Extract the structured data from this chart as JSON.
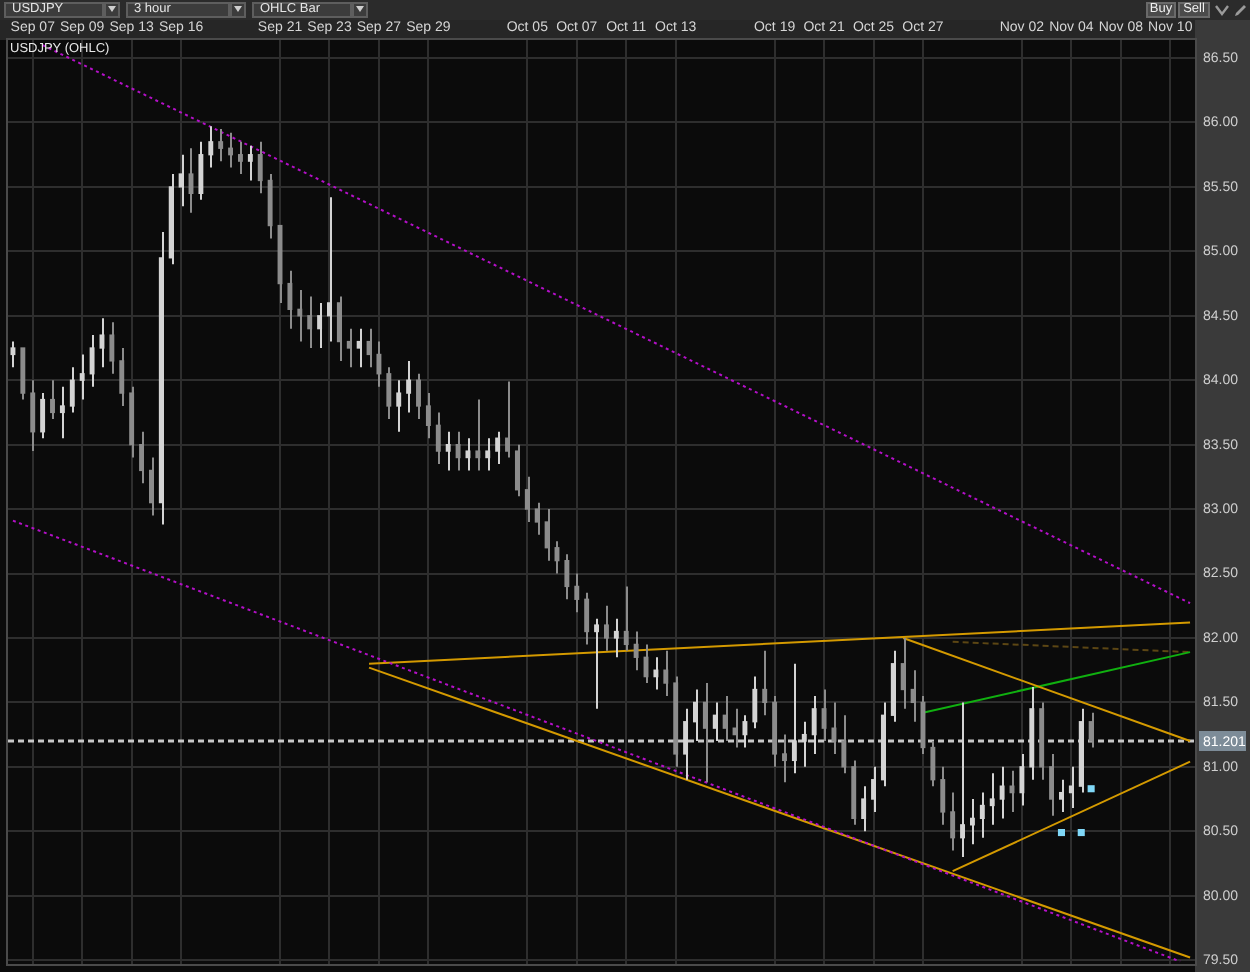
{
  "chart_data": {
    "type": "candlestick",
    "title": "USDJPY (OHLC)",
    "annotations": [
      "USDJPY",
      "3 hour",
      "OHLC Bar",
      "Buy",
      "Sell"
    ],
    "categories": [
      null,
      null,
      "Sep 07",
      null,
      null,
      null,
      null,
      "Sep 09",
      null,
      null,
      null,
      null,
      "Sep 13",
      null,
      null,
      null,
      null,
      "Sep 16",
      null,
      null,
      null,
      null,
      null,
      null,
      null,
      null,
      null,
      "Sep 21",
      null,
      null,
      null,
      null,
      "Sep 23",
      null,
      null,
      null,
      null,
      "Sep 27",
      null,
      null,
      null,
      null,
      "Sep 29",
      null,
      null,
      null,
      null,
      null,
      null,
      null,
      null,
      null,
      "Oct 05",
      null,
      null,
      null,
      null,
      "Oct 07",
      null,
      null,
      null,
      null,
      "Oct 11",
      null,
      null,
      null,
      null,
      "Oct 13",
      null,
      null,
      null,
      null,
      null,
      null,
      null,
      null,
      null,
      "Oct 19",
      null,
      null,
      null,
      null,
      "Oct 21",
      null,
      null,
      null,
      null,
      "Oct 25",
      null,
      null,
      null,
      null,
      "Oct 27",
      null,
      null,
      null,
      null,
      null,
      null,
      null,
      null,
      null,
      "Nov 02",
      null,
      null,
      null,
      null,
      "Nov 04",
      null,
      null,
      null,
      null,
      "Nov 08",
      null,
      null,
      null,
      null,
      "Nov 10",
      null,
      null
    ],
    "ohlc": [
      [
        84.2,
        84.3,
        84.1,
        84.25
      ],
      [
        84.25,
        84.25,
        83.85,
        83.9
      ],
      [
        83.9,
        84.0,
        83.45,
        83.6
      ],
      [
        83.6,
        83.9,
        83.55,
        83.85
      ],
      [
        83.85,
        84.0,
        83.7,
        83.75
      ],
      [
        83.75,
        83.95,
        83.55,
        83.8
      ],
      [
        83.8,
        84.1,
        83.75,
        84.0
      ],
      [
        84.0,
        84.2,
        83.85,
        84.05
      ],
      [
        84.05,
        84.35,
        83.95,
        84.25
      ],
      [
        84.25,
        84.48,
        84.1,
        84.35
      ],
      [
        84.35,
        84.45,
        84.05,
        84.15
      ],
      [
        84.15,
        84.25,
        83.8,
        83.9
      ],
      [
        83.9,
        83.95,
        83.4,
        83.5
      ],
      [
        83.5,
        83.6,
        83.2,
        83.3
      ],
      [
        83.3,
        83.4,
        82.95,
        83.05
      ],
      [
        83.05,
        85.15,
        82.88,
        84.95
      ],
      [
        84.95,
        85.6,
        84.9,
        85.5
      ],
      [
        85.5,
        85.75,
        85.35,
        85.6
      ],
      [
        85.6,
        85.8,
        85.3,
        85.45
      ],
      [
        85.45,
        85.85,
        85.4,
        85.75
      ],
      [
        85.75,
        85.97,
        85.65,
        85.85
      ],
      [
        85.85,
        85.95,
        85.7,
        85.8
      ],
      [
        85.8,
        85.92,
        85.65,
        85.75
      ],
      [
        85.75,
        85.85,
        85.6,
        85.7
      ],
      [
        85.7,
        85.82,
        85.55,
        85.75
      ],
      [
        85.75,
        85.85,
        85.45,
        85.55
      ],
      [
        85.55,
        85.6,
        85.1,
        85.2
      ],
      [
        85.2,
        85.2,
        84.6,
        84.75
      ],
      [
        84.75,
        84.85,
        84.4,
        84.55
      ],
      [
        84.55,
        84.7,
        84.3,
        84.5
      ],
      [
        84.5,
        84.65,
        84.25,
        84.4
      ],
      [
        84.4,
        84.6,
        84.25,
        84.5
      ],
      [
        84.5,
        85.42,
        84.3,
        84.6
      ],
      [
        84.6,
        84.65,
        84.15,
        84.3
      ],
      [
        84.3,
        84.4,
        84.1,
        84.25
      ],
      [
        84.25,
        84.4,
        84.1,
        84.3
      ],
      [
        84.3,
        84.4,
        84.1,
        84.2
      ],
      [
        84.2,
        84.3,
        83.95,
        84.05
      ],
      [
        84.05,
        84.1,
        83.7,
        83.8
      ],
      [
        83.8,
        84.0,
        83.6,
        83.9
      ],
      [
        83.9,
        84.15,
        83.75,
        84.0
      ],
      [
        84.0,
        84.05,
        83.7,
        83.8
      ],
      [
        83.8,
        83.9,
        83.55,
        83.65
      ],
      [
        83.65,
        83.75,
        83.35,
        83.45
      ],
      [
        83.45,
        83.6,
        83.3,
        83.5
      ],
      [
        83.5,
        83.6,
        83.3,
        83.4
      ],
      [
        83.4,
        83.55,
        83.3,
        83.45
      ],
      [
        83.45,
        83.85,
        83.3,
        83.4
      ],
      [
        83.4,
        83.55,
        83.3,
        83.45
      ],
      [
        83.45,
        83.6,
        83.35,
        83.55
      ],
      [
        83.55,
        83.99,
        83.4,
        83.45
      ],
      [
        83.45,
        83.5,
        83.1,
        83.15
      ],
      [
        83.15,
        83.25,
        82.9,
        83.0
      ],
      [
        83.0,
        83.05,
        82.8,
        82.9
      ],
      [
        82.9,
        83.0,
        82.6,
        82.7
      ],
      [
        82.7,
        82.75,
        82.5,
        82.6
      ],
      [
        82.6,
        82.65,
        82.3,
        82.4
      ],
      [
        82.4,
        82.5,
        82.2,
        82.3
      ],
      [
        82.3,
        82.35,
        81.95,
        82.05
      ],
      [
        82.05,
        82.15,
        81.45,
        82.1
      ],
      [
        82.1,
        82.25,
        81.9,
        82.0
      ],
      [
        82.0,
        82.15,
        81.85,
        82.05
      ],
      [
        82.05,
        82.4,
        81.9,
        81.95
      ],
      [
        81.95,
        82.05,
        81.75,
        81.85
      ],
      [
        81.85,
        81.95,
        81.65,
        81.7
      ],
      [
        81.7,
        81.85,
        81.6,
        81.75
      ],
      [
        81.75,
        81.9,
        81.55,
        81.65
      ],
      [
        81.65,
        81.7,
        81.0,
        81.1
      ],
      [
        81.1,
        81.45,
        80.9,
        81.35
      ],
      [
        81.35,
        81.6,
        81.2,
        81.5
      ],
      [
        81.5,
        81.65,
        80.88,
        81.3
      ],
      [
        81.3,
        81.5,
        81.2,
        81.4
      ],
      [
        81.4,
        81.55,
        81.2,
        81.3
      ],
      [
        81.3,
        81.45,
        81.15,
        81.25
      ],
      [
        81.25,
        81.4,
        81.15,
        81.35
      ],
      [
        81.35,
        81.7,
        81.3,
        81.6
      ],
      [
        81.6,
        81.9,
        81.4,
        81.5
      ],
      [
        81.5,
        81.55,
        81.0,
        81.1
      ],
      [
        81.1,
        81.25,
        80.88,
        81.05
      ],
      [
        81.05,
        81.8,
        80.95,
        81.2
      ],
      [
        81.2,
        81.35,
        81.0,
        81.25
      ],
      [
        81.25,
        81.55,
        81.1,
        81.45
      ],
      [
        81.45,
        81.6,
        81.2,
        81.3
      ],
      [
        81.3,
        81.5,
        81.1,
        81.2
      ],
      [
        81.2,
        81.4,
        80.95,
        81.0
      ],
      [
        81.0,
        81.05,
        80.55,
        80.6
      ],
      [
        80.6,
        80.85,
        80.5,
        80.75
      ],
      [
        80.75,
        81.0,
        80.65,
        80.9
      ],
      [
        80.9,
        81.5,
        80.85,
        81.4
      ],
      [
        81.4,
        81.9,
        81.35,
        81.8
      ],
      [
        81.8,
        82.0,
        81.45,
        81.6
      ],
      [
        81.6,
        81.75,
        81.35,
        81.5
      ],
      [
        81.5,
        81.55,
        81.1,
        81.15
      ],
      [
        81.15,
        81.2,
        80.85,
        80.9
      ],
      [
        80.9,
        81.0,
        80.55,
        80.65
      ],
      [
        80.65,
        80.8,
        80.35,
        80.45
      ],
      [
        80.45,
        81.5,
        80.3,
        80.55
      ],
      [
        80.55,
        80.75,
        80.4,
        80.6
      ],
      [
        80.6,
        80.8,
        80.45,
        80.7
      ],
      [
        80.7,
        80.95,
        80.55,
        80.75
      ],
      [
        80.75,
        81.0,
        80.6,
        80.85
      ],
      [
        80.85,
        80.97,
        80.65,
        80.8
      ],
      [
        80.8,
        81.1,
        80.7,
        81.0
      ],
      [
        81.0,
        81.62,
        80.9,
        81.45
      ],
      [
        81.45,
        81.5,
        80.9,
        81.0
      ],
      [
        81.0,
        81.1,
        80.62,
        80.75
      ],
      [
        80.75,
        80.9,
        80.65,
        80.8
      ],
      [
        80.8,
        81.0,
        80.68,
        80.85
      ],
      [
        80.85,
        81.45,
        80.8,
        81.35
      ],
      [
        81.35,
        81.42,
        81.15,
        81.2
      ],
      null,
      null,
      null,
      null,
      null,
      null,
      null,
      null,
      null,
      null
    ],
    "colors": [
      "#d4d4d4",
      "#8c8c8c",
      "#8c8c8c",
      "#d4d4d4",
      "#8c8c8c",
      "#d4d4d4",
      "#d4d4d4",
      "#d4d4d4",
      "#d4d4d4",
      "#d4d4d4",
      "#8c8c8c",
      "#8c8c8c",
      "#8c8c8c",
      "#8c8c8c",
      "#8c8c8c",
      "#d4d4d4",
      "#d4d4d4",
      "#d4d4d4",
      "#8c8c8c",
      "#d4d4d4",
      "#d4d4d4",
      "#8c8c8c",
      "#8c8c8c",
      "#8c8c8c",
      "#d4d4d4",
      "#8c8c8c",
      "#8c8c8c",
      "#8c8c8c",
      "#8c8c8c",
      "#8c8c8c",
      "#8c8c8c",
      "#d4d4d4",
      "#d4d4d4",
      "#8c8c8c",
      "#8c8c8c",
      "#d4d4d4",
      "#8c8c8c",
      "#8c8c8c",
      "#8c8c8c",
      "#d4d4d4",
      "#d4d4d4",
      "#8c8c8c",
      "#8c8c8c",
      "#8c8c8c",
      "#d4d4d4",
      "#8c8c8c",
      "#d4d4d4",
      "#8c8c8c",
      "#d4d4d4",
      "#d4d4d4",
      "#8c8c8c",
      "#8c8c8c",
      "#8c8c8c",
      "#8c8c8c",
      "#8c8c8c",
      "#8c8c8c",
      "#8c8c8c",
      "#8c8c8c",
      "#8c8c8c",
      "#d4d4d4",
      "#8c8c8c",
      "#d4d4d4",
      "#8c8c8c",
      "#8c8c8c",
      "#8c8c8c",
      "#d4d4d4",
      "#8c8c8c",
      "#8c8c8c",
      "#d4d4d4",
      "#d4d4d4",
      "#8c8c8c",
      "#d4d4d4",
      "#8c8c8c",
      "#8c8c8c",
      "#d4d4d4",
      "#d4d4d4",
      "#8c8c8c",
      "#8c8c8c",
      "#8c8c8c",
      "#d4d4d4",
      "#d4d4d4",
      "#d4d4d4",
      "#8c8c8c",
      "#8c8c8c",
      "#8c8c8c",
      "#8c8c8c",
      "#d4d4d4",
      "#d4d4d4",
      "#d4d4d4",
      "#d4d4d4",
      "#8c8c8c",
      "#8c8c8c",
      "#8c8c8c",
      "#8c8c8c",
      "#8c8c8c",
      "#8c8c8c",
      "#d4d4d4",
      "#d4d4d4",
      "#d4d4d4",
      "#d4d4d4",
      "#d4d4d4",
      "#8c8c8c",
      "#d4d4d4",
      "#d4d4d4",
      "#8c8c8c",
      "#8c8c8c",
      "#d4d4d4",
      "#d4d4d4",
      "#d4d4d4",
      "#8c8c8c",
      null,
      null,
      null,
      null,
      null,
      null,
      null,
      null,
      null,
      null
    ],
    "series": [
      {
        "type": "line",
        "color": "#b410c8",
        "line_style": "dotted",
        "values": [
          null,
          null,
          null,
          86.6,
          null,
          null,
          null,
          null,
          null,
          null,
          null,
          null,
          null,
          null,
          null,
          null,
          null,
          null,
          null,
          null,
          null,
          null,
          null,
          null,
          null,
          null,
          null,
          null,
          null,
          null,
          null,
          null,
          null,
          null,
          null,
          null,
          null,
          null,
          null,
          null,
          null,
          null,
          null,
          null,
          null,
          null,
          null,
          null,
          null,
          null,
          null,
          null,
          null,
          null,
          null,
          null,
          null,
          null,
          null,
          null,
          null,
          null,
          null,
          null,
          null,
          null,
          null,
          null,
          null,
          null,
          null,
          null,
          null,
          null,
          null,
          null,
          null,
          null,
          null,
          null,
          null,
          null,
          null,
          null,
          null,
          null,
          null,
          null,
          null,
          null,
          null,
          null,
          null,
          null,
          null,
          null,
          null,
          null,
          null,
          null,
          null,
          null,
          null,
          null,
          null,
          null,
          null,
          null,
          null,
          null,
          null,
          null,
          null,
          null,
          null,
          null,
          null,
          null,
          null,
          82.27
        ]
      },
      {
        "type": "line",
        "color": "#b410c8",
        "line_style": "dotted",
        "values": [
          82.91,
          null,
          null,
          null,
          null,
          null,
          null,
          null,
          null,
          null,
          null,
          null,
          null,
          null,
          null,
          null,
          null,
          null,
          null,
          null,
          null,
          null,
          null,
          null,
          null,
          null,
          null,
          null,
          null,
          null,
          null,
          null,
          null,
          null,
          null,
          null,
          null,
          null,
          null,
          null,
          null,
          null,
          null,
          null,
          null,
          null,
          null,
          null,
          null,
          null,
          null,
          null,
          null,
          null,
          null,
          null,
          null,
          null,
          null,
          null,
          null,
          null,
          null,
          null,
          null,
          null,
          null,
          null,
          null,
          null,
          null,
          null,
          null,
          null,
          null,
          null,
          null,
          null,
          null,
          null,
          null,
          null,
          null,
          null,
          null,
          null,
          null,
          null,
          null,
          null,
          null,
          null,
          null,
          null,
          null,
          null,
          null,
          null,
          null,
          null,
          null,
          null,
          null,
          null,
          null,
          null,
          null,
          null,
          null,
          null,
          null,
          null,
          null,
          null,
          null,
          null,
          null,
          null,
          79.49,
          null
        ]
      },
      {
        "type": "line",
        "color": "#d49a00",
        "line_style": "solid",
        "values": [
          null,
          null,
          null,
          null,
          null,
          null,
          null,
          null,
          null,
          null,
          null,
          null,
          null,
          null,
          null,
          null,
          null,
          null,
          null,
          null,
          null,
          null,
          null,
          null,
          null,
          null,
          null,
          null,
          null,
          null,
          null,
          null,
          null,
          null,
          null,
          null,
          81.8,
          null,
          null,
          null,
          null,
          null,
          null,
          null,
          null,
          null,
          null,
          null,
          null,
          null,
          null,
          null,
          null,
          null,
          null,
          null,
          null,
          null,
          null,
          null,
          null,
          null,
          null,
          null,
          null,
          null,
          null,
          null,
          null,
          null,
          null,
          null,
          null,
          null,
          null,
          null,
          null,
          null,
          null,
          null,
          null,
          null,
          null,
          null,
          null,
          null,
          null,
          null,
          null,
          null,
          null,
          null,
          null,
          null,
          null,
          null,
          null,
          null,
          null,
          null,
          null,
          null,
          null,
          null,
          null,
          null,
          null,
          null,
          null,
          null,
          null,
          null,
          null,
          null,
          null,
          null,
          null,
          null,
          null,
          82.12
        ]
      },
      {
        "type": "line",
        "color": "#d49a00",
        "line_style": "solid",
        "values": [
          null,
          null,
          null,
          null,
          null,
          null,
          null,
          null,
          null,
          null,
          null,
          null,
          null,
          null,
          null,
          null,
          null,
          null,
          null,
          null,
          null,
          null,
          null,
          null,
          null,
          null,
          null,
          null,
          null,
          null,
          null,
          null,
          null,
          null,
          null,
          null,
          81.77,
          null,
          null,
          null,
          null,
          null,
          null,
          null,
          null,
          null,
          null,
          null,
          null,
          null,
          null,
          null,
          null,
          null,
          null,
          null,
          null,
          null,
          null,
          null,
          null,
          null,
          null,
          null,
          null,
          null,
          null,
          null,
          null,
          null,
          null,
          null,
          null,
          null,
          null,
          null,
          null,
          null,
          null,
          null,
          null,
          null,
          null,
          null,
          null,
          null,
          null,
          null,
          null,
          null,
          null,
          null,
          null,
          null,
          null,
          null,
          null,
          null,
          null,
          null,
          null,
          null,
          null,
          null,
          null,
          null,
          null,
          null,
          null,
          null,
          null,
          null,
          null,
          null,
          null,
          null,
          null,
          null,
          null,
          79.52
        ]
      },
      {
        "type": "line",
        "color": "#d49a00",
        "line_style": "solid",
        "values": [
          null,
          null,
          null,
          null,
          null,
          null,
          null,
          null,
          null,
          null,
          null,
          null,
          null,
          null,
          null,
          null,
          null,
          null,
          null,
          null,
          null,
          null,
          null,
          null,
          null,
          null,
          null,
          null,
          null,
          null,
          null,
          null,
          null,
          null,
          null,
          null,
          null,
          null,
          null,
          null,
          null,
          null,
          null,
          null,
          null,
          null,
          null,
          null,
          null,
          null,
          null,
          null,
          null,
          null,
          null,
          null,
          null,
          null,
          null,
          null,
          null,
          null,
          null,
          null,
          null,
          null,
          null,
          null,
          null,
          null,
          null,
          null,
          null,
          null,
          null,
          null,
          null,
          null,
          null,
          null,
          null,
          null,
          null,
          null,
          null,
          null,
          null,
          null,
          null,
          null,
          82.0,
          null,
          null,
          null,
          null,
          null,
          null,
          null,
          null,
          null,
          null,
          null,
          null,
          null,
          null,
          null,
          null,
          null,
          null,
          null,
          null,
          null,
          null,
          null,
          null,
          null,
          null,
          null,
          null,
          81.2
        ]
      },
      {
        "type": "line",
        "color": "#d49a00",
        "line_style": "solid",
        "values": [
          null,
          null,
          null,
          null,
          null,
          null,
          null,
          null,
          null,
          null,
          null,
          null,
          null,
          null,
          null,
          null,
          null,
          null,
          null,
          null,
          null,
          null,
          null,
          null,
          null,
          null,
          null,
          null,
          null,
          null,
          null,
          null,
          null,
          null,
          null,
          null,
          null,
          null,
          null,
          null,
          null,
          null,
          null,
          null,
          null,
          null,
          null,
          null,
          null,
          null,
          null,
          null,
          null,
          null,
          null,
          null,
          null,
          null,
          null,
          null,
          null,
          null,
          null,
          null,
          null,
          null,
          null,
          null,
          null,
          null,
          null,
          null,
          null,
          null,
          null,
          null,
          null,
          null,
          null,
          null,
          null,
          null,
          null,
          null,
          null,
          null,
          null,
          null,
          null,
          null,
          null,
          null,
          null,
          null,
          null,
          80.19,
          null,
          null,
          null,
          null,
          null,
          null,
          null,
          null,
          null,
          null,
          null,
          null,
          null,
          null,
          null,
          null,
          null,
          null,
          null,
          null,
          null,
          null,
          null,
          81.04
        ]
      },
      {
        "type": "line",
        "color": "#10b010",
        "line_style": "solid",
        "values": [
          null,
          null,
          null,
          null,
          null,
          null,
          null,
          null,
          null,
          null,
          null,
          null,
          null,
          null,
          null,
          null,
          null,
          null,
          null,
          null,
          null,
          null,
          null,
          null,
          null,
          null,
          null,
          null,
          null,
          null,
          null,
          null,
          null,
          null,
          null,
          null,
          null,
          null,
          null,
          null,
          null,
          null,
          null,
          null,
          null,
          null,
          null,
          null,
          null,
          null,
          null,
          null,
          null,
          null,
          null,
          null,
          null,
          null,
          null,
          null,
          null,
          null,
          null,
          null,
          null,
          null,
          null,
          null,
          null,
          null,
          null,
          null,
          null,
          null,
          null,
          null,
          null,
          null,
          null,
          null,
          null,
          null,
          null,
          null,
          null,
          null,
          null,
          null,
          null,
          null,
          null,
          null,
          81.42,
          null,
          null,
          null,
          null,
          null,
          null,
          null,
          null,
          null,
          null,
          null,
          null,
          null,
          null,
          null,
          null,
          null,
          null,
          null,
          null,
          null,
          null,
          null,
          null,
          null,
          null,
          81.89
        ]
      },
      {
        "type": "line",
        "color": "#5c4614",
        "line_style": "dashed",
        "values": [
          null,
          null,
          null,
          null,
          null,
          null,
          null,
          null,
          null,
          null,
          null,
          null,
          null,
          null,
          null,
          null,
          null,
          null,
          null,
          null,
          null,
          null,
          null,
          null,
          null,
          null,
          null,
          null,
          null,
          null,
          null,
          null,
          null,
          null,
          null,
          null,
          null,
          null,
          null,
          null,
          null,
          null,
          null,
          null,
          null,
          null,
          null,
          null,
          null,
          null,
          null,
          null,
          null,
          null,
          null,
          null,
          null,
          null,
          null,
          null,
          null,
          null,
          null,
          null,
          null,
          null,
          null,
          null,
          null,
          null,
          null,
          null,
          null,
          null,
          null,
          null,
          null,
          null,
          null,
          null,
          null,
          null,
          null,
          null,
          null,
          null,
          null,
          null,
          null,
          null,
          null,
          null,
          null,
          null,
          null,
          81.97,
          null,
          null,
          null,
          null,
          null,
          null,
          null,
          null,
          null,
          null,
          null,
          null,
          null,
          null,
          null,
          null,
          null,
          null,
          null,
          null,
          null,
          null,
          null,
          81.89
        ]
      },
      {
        "type": "scatter",
        "color": "#80d8f8",
        "marker": "square",
        "values": [
          null,
          null,
          null,
          null,
          null,
          null,
          null,
          null,
          null,
          null,
          null,
          null,
          null,
          null,
          null,
          null,
          null,
          null,
          null,
          null,
          null,
          null,
          null,
          null,
          null,
          null,
          null,
          null,
          null,
          null,
          null,
          null,
          null,
          null,
          null,
          null,
          null,
          null,
          null,
          null,
          null,
          null,
          null,
          null,
          null,
          null,
          null,
          null,
          null,
          null,
          null,
          null,
          null,
          null,
          null,
          null,
          null,
          null,
          null,
          null,
          null,
          null,
          null,
          null,
          null,
          null,
          null,
          null,
          null,
          null,
          null,
          null,
          null,
          null,
          null,
          null,
          null,
          null,
          null,
          null,
          null,
          null,
          null,
          null,
          null,
          null,
          null,
          null,
          null,
          null,
          null,
          null,
          null,
          null,
          null,
          null,
          null,
          null,
          null,
          null,
          null,
          null,
          null,
          null,
          null,
          null,
          80.49,
          null,
          80.49,
          80.83,
          null,
          null,
          null,
          null,
          null,
          null,
          null,
          null,
          null,
          null
        ]
      }
    ],
    "ylim": [
      79.47,
      86.64
    ],
    "yticks": [
      {
        "value": 79.5,
        "label": "79.50"
      },
      {
        "value": 80,
        "label": "80.00"
      },
      {
        "value": 80.5,
        "label": "80.50"
      },
      {
        "value": 81,
        "label": "81.00"
      },
      {
        "value": 81.5,
        "label": "81.50"
      },
      {
        "value": 82,
        "label": "82.00"
      },
      {
        "value": 82.5,
        "label": "82.50"
      },
      {
        "value": 83,
        "label": "83.00"
      },
      {
        "value": 83.5,
        "label": "83.50"
      },
      {
        "value": 84,
        "label": "84.00"
      },
      {
        "value": 84.5,
        "label": "84.50"
      },
      {
        "value": 85,
        "label": "85.00"
      },
      {
        "value": 85.5,
        "label": "85.50"
      },
      {
        "value": 86,
        "label": "86.00"
      },
      {
        "value": 86.5,
        "label": "86.50"
      }
    ],
    "ref_lines": [
      {
        "axis": "y",
        "value": 81.201,
        "label": "81.201",
        "color": "#c8c8c8",
        "line_style": "dashed"
      }
    ],
    "grid": true
  }
}
